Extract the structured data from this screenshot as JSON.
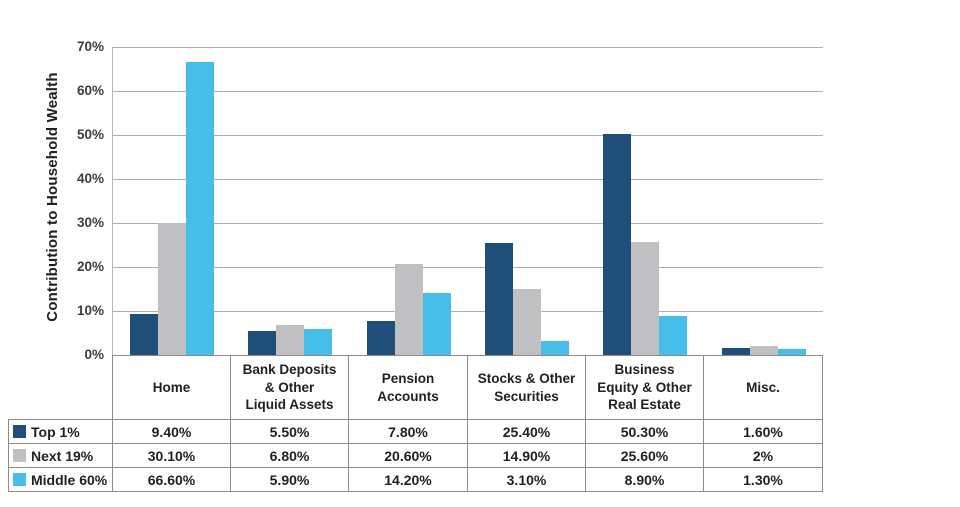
{
  "chart_data": {
    "type": "bar",
    "title": "",
    "ylabel": "Contribution to Household Wealth",
    "xlabel": "",
    "ylim": [
      0,
      70
    ],
    "ytick_step": 10,
    "ytick_labels": [
      "0%",
      "10%",
      "20%",
      "30%",
      "40%",
      "50%",
      "60%",
      "70%"
    ],
    "grid": true,
    "legend_position": "table-left-column",
    "categories": [
      "Home",
      "Bank Deposits\n& Other\nLiquid Assets",
      "Pension\nAccounts",
      "Stocks & Other\nSecurities",
      "Business\nEquity & Other\nReal Estate",
      "Misc."
    ],
    "series": [
      {
        "name": "Top 1%",
        "color": "#1F4E79",
        "values": [
          9.4,
          5.5,
          7.8,
          25.4,
          50.3,
          1.6
        ],
        "display_values": [
          "9.40%",
          "5.50%",
          "7.80%",
          "25.40%",
          "50.30%",
          "1.60%"
        ]
      },
      {
        "name": "Next 19%",
        "color": "#C0C0C3",
        "values": [
          30.1,
          6.8,
          20.6,
          14.9,
          25.6,
          2
        ],
        "display_values": [
          "30.10%",
          "6.80%",
          "20.60%",
          "14.90%",
          "25.60%",
          "2%"
        ]
      },
      {
        "name": "Middle 60%",
        "color": "#47BDEA",
        "values": [
          66.6,
          5.9,
          14.2,
          3.1,
          8.9,
          1.3
        ],
        "display_values": [
          "66.60%",
          "5.90%",
          "14.20%",
          "3.10%",
          "8.90%",
          "1.30%"
        ]
      }
    ],
    "colors": {
      "grid_line": "#aeaeae",
      "axis_line": "#b7b7b7",
      "table_border": "#8c8c8c",
      "text": "#231F20"
    }
  }
}
